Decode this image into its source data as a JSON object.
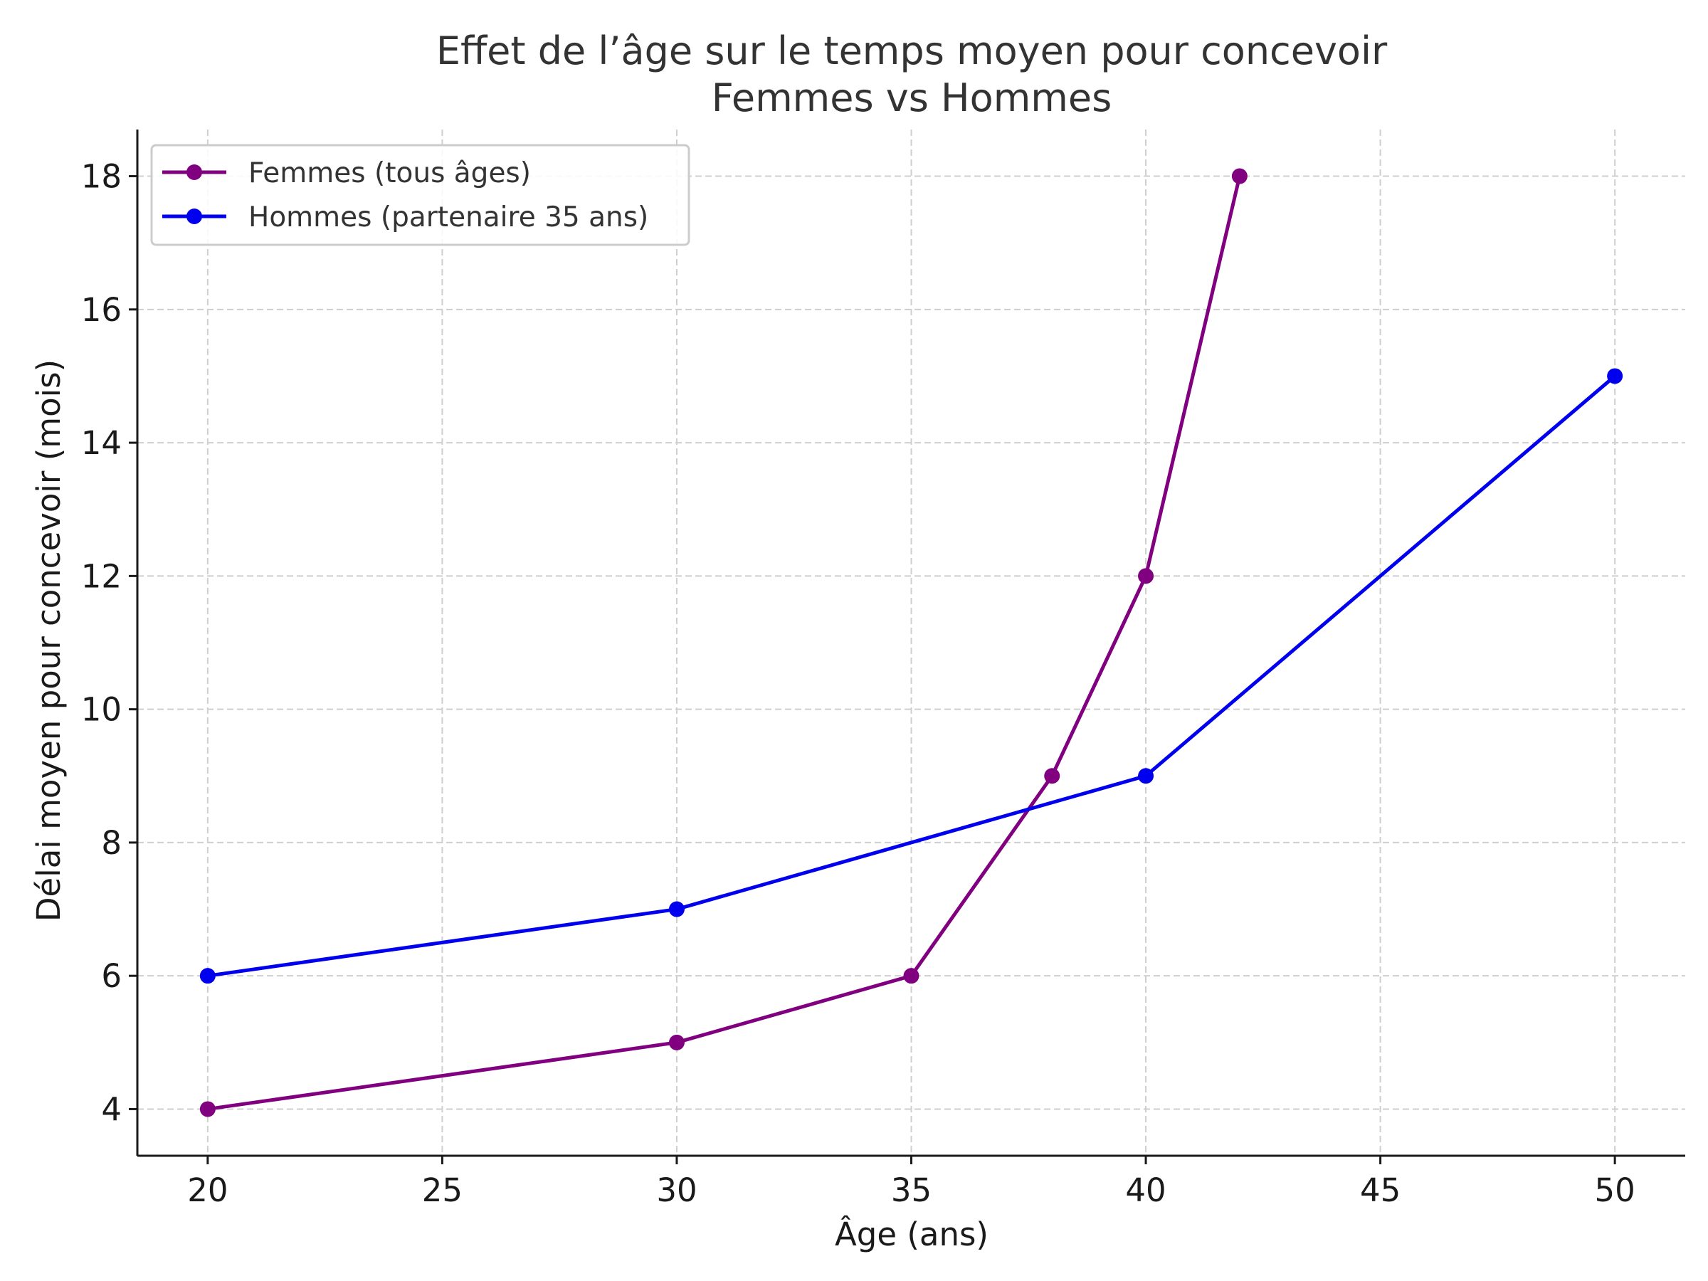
{
  "chart_data": {
    "type": "line",
    "title_line1": "Effet de l’âge sur le temps moyen pour concevoir",
    "title_line2": "Femmes vs Hommes",
    "xlabel": "Âge (ans)",
    "ylabel": "Délai moyen pour concevoir (mois)",
    "xlim": [
      18.5,
      51.5
    ],
    "ylim": [
      3.3,
      18.7
    ],
    "xticks": [
      20,
      25,
      30,
      35,
      40,
      45,
      50
    ],
    "yticks": [
      4,
      6,
      8,
      10,
      12,
      14,
      16,
      18
    ],
    "grid": true,
    "legend_position": "top-left",
    "series": [
      {
        "name": "Femmes (tous âges)",
        "color": "#800080",
        "marker": "circle",
        "x": [
          20,
          30,
          35,
          38,
          40,
          42
        ],
        "y": [
          4,
          5,
          6,
          9,
          12,
          18
        ]
      },
      {
        "name": "Hommes (partenaire 35 ans)",
        "color": "#0000ee",
        "marker": "circle",
        "x": [
          20,
          30,
          40,
          50
        ],
        "y": [
          6,
          7,
          9,
          15
        ]
      }
    ]
  }
}
